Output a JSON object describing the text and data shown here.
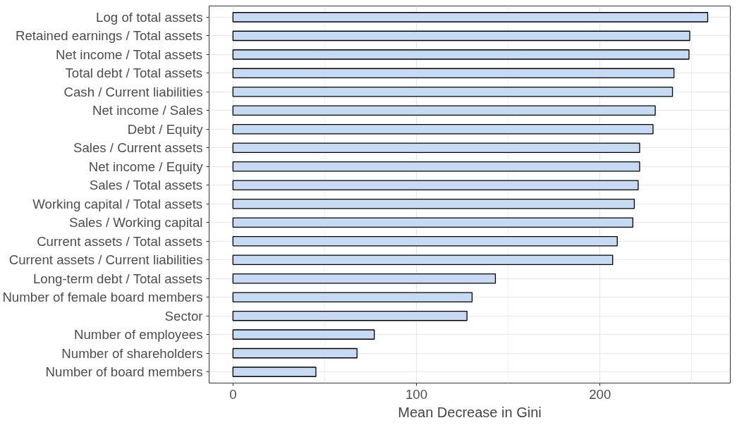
{
  "chart_data": {
    "type": "bar",
    "orientation": "horizontal",
    "xlabel": "Mean Decrease in Gini",
    "categories": [
      "Log of total assets",
      "Retained earnings / Total assets",
      "Net income / Total assets",
      "Total debt / Total assets",
      "Cash / Current liabilities",
      "Net income / Sales",
      "Debt / Equity",
      "Sales / Current assets",
      "Net income / Equity",
      "Sales / Total assets",
      "Working capital / Total assets",
      "Sales / Working capital",
      "Current assets / Total assets",
      "Current assets / Current liabilities",
      "Long-term debt / Total assets",
      "Number of female board members",
      "Sector",
      "Number of employees",
      "Number of shareholders",
      "Number of board members"
    ],
    "values": [
      258.7,
      248.9,
      248.5,
      240.3,
      239.5,
      230.1,
      228.9,
      221.6,
      221.6,
      220.8,
      218.7,
      217.9,
      209.4,
      206.9,
      143.0,
      130.3,
      127.5,
      77.0,
      67.6,
      45.2
    ],
    "color": "#c6dbf3",
    "xlim": [
      -13,
      271
    ],
    "xticks": [
      0,
      100,
      200
    ],
    "grid": true
  }
}
